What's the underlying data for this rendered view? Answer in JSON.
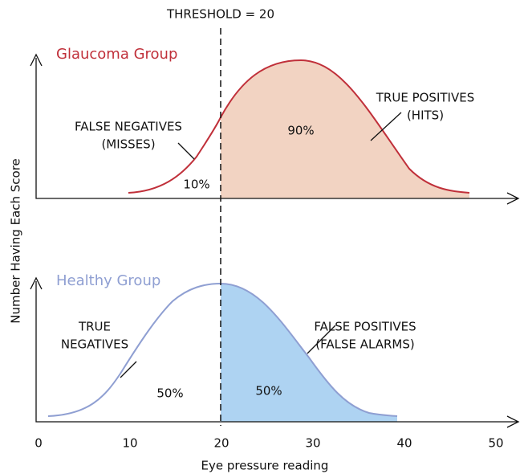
{
  "threshold_label": "THRESHOLD = 20",
  "y_axis_label": "Number Having Each Score",
  "x_axis_label": "Eye pressure reading",
  "x_ticks": [
    0,
    10,
    20,
    30,
    40,
    50
  ],
  "panels": [
    {
      "group": "Glaucoma Group",
      "left_label": [
        "FALSE NEGATIVES",
        "(MISSES)"
      ],
      "left_percent": "10%",
      "right_label": [
        "TRUE POSITIVES",
        "(HITS)"
      ],
      "right_percent": "90%"
    },
    {
      "group": "Healthy Group",
      "left_label": [
        "TRUE",
        "NEGATIVES"
      ],
      "left_percent": "50%",
      "right_label": [
        "FALSE POSITIVES",
        "(FALSE ALARMS)"
      ],
      "right_percent": "50%"
    }
  ]
}
